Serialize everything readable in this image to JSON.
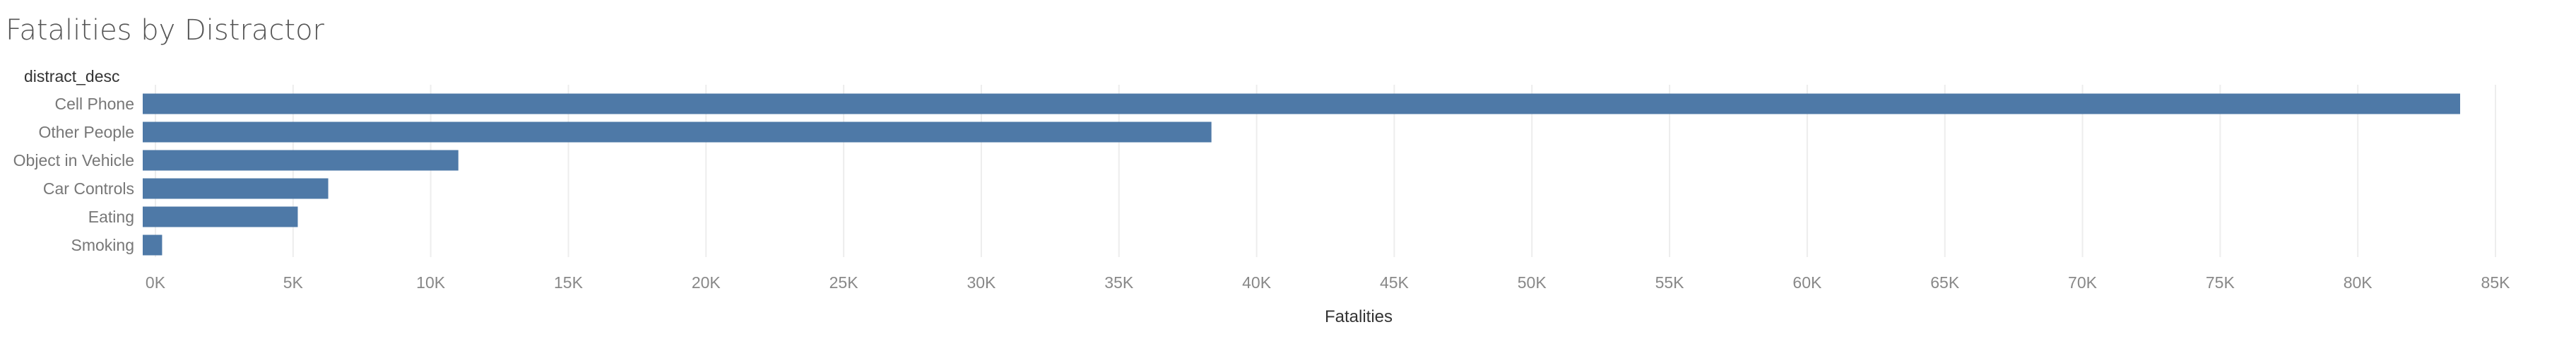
{
  "chart_data": {
    "type": "bar",
    "orientation": "horizontal",
    "title": "Fatalities by Distractor",
    "category_header": "distract_desc",
    "xlabel": "Fatalities",
    "ylabel": "",
    "categories": [
      "Cell Phone",
      "Other People",
      "Object in Vehicle",
      "Car Controls",
      "Eating",
      "Smoking"
    ],
    "values": [
      83700,
      38600,
      11400,
      6700,
      5600,
      700
    ],
    "xlim": [
      0,
      88000
    ],
    "xticks": [
      0,
      5000,
      10000,
      15000,
      20000,
      25000,
      30000,
      35000,
      40000,
      45000,
      50000,
      55000,
      60000,
      65000,
      70000,
      75000,
      80000,
      85000
    ],
    "xtick_labels": [
      "0K",
      "5K",
      "10K",
      "15K",
      "20K",
      "25K",
      "30K",
      "35K",
      "40K",
      "45K",
      "50K",
      "55K",
      "60K",
      "65K",
      "70K",
      "75K",
      "80K",
      "85K"
    ],
    "grid": true,
    "legend": "none"
  },
  "colors": {
    "bar": "#4e79a7",
    "grid": "#ededed",
    "title": "#555555",
    "header": "#333333",
    "tick_label": "#888888",
    "category_label": "#777777",
    "axis_title": "#333333"
  }
}
